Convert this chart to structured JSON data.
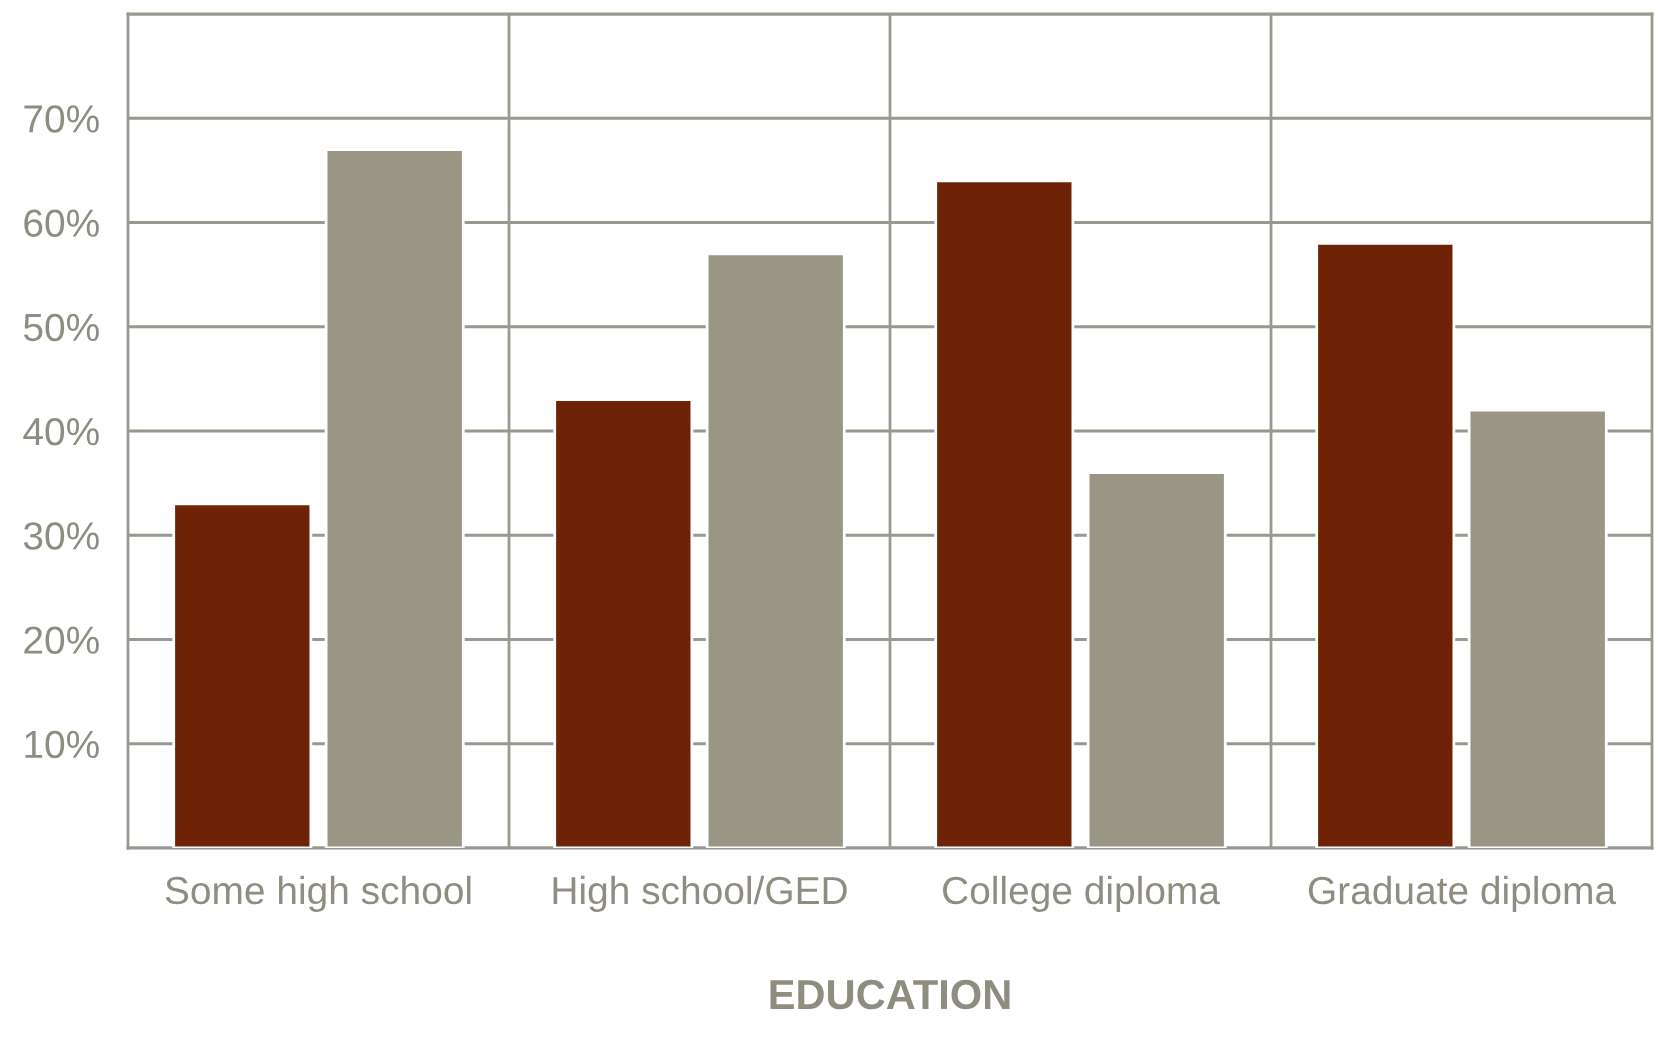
{
  "chart_data": {
    "type": "bar",
    "xlabel": "EDUCATION",
    "categories": [
      "Some high school",
      "High school/GED",
      "College diploma",
      "Graduate diploma"
    ],
    "series": [
      {
        "color": "#6e2307",
        "values": [
          33,
          43,
          64,
          58
        ]
      },
      {
        "color": "#9a9686",
        "values": [
          67,
          57,
          36,
          42
        ]
      }
    ],
    "ylim": [
      0,
      80
    ],
    "yticks": [
      {
        "value": 0,
        "label": null
      },
      {
        "value": 10,
        "label": "10%"
      },
      {
        "value": 20,
        "label": "20%"
      },
      {
        "value": 30,
        "label": "30%"
      },
      {
        "value": 40,
        "label": "40%"
      },
      {
        "value": 50,
        "label": "50%"
      },
      {
        "value": 60,
        "label": "60%"
      },
      {
        "value": 70,
        "label": "70%"
      },
      {
        "value": 80,
        "label": null
      }
    ],
    "grid": true,
    "legend": false
  }
}
